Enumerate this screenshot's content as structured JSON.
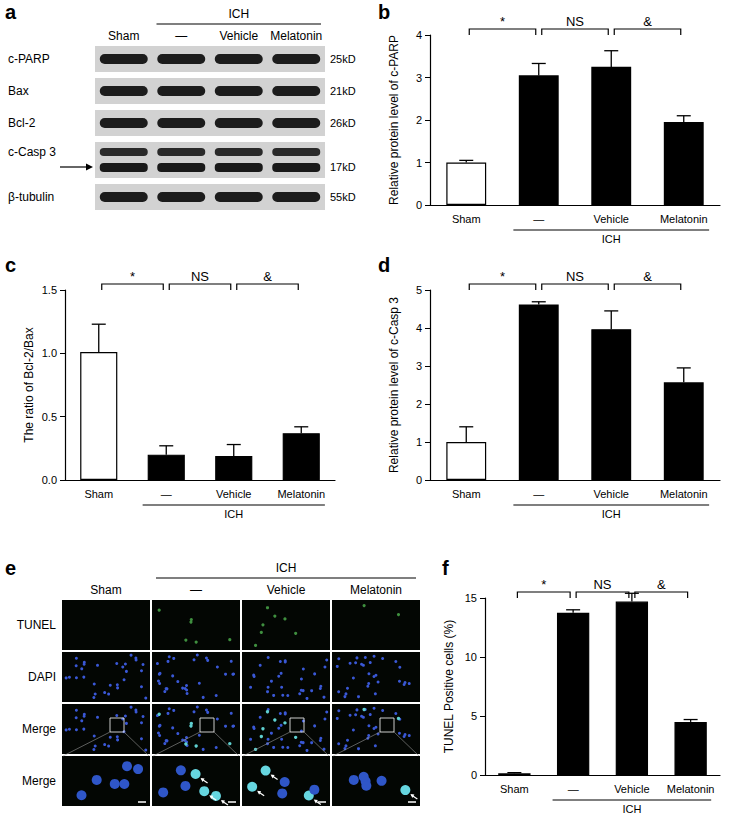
{
  "chart_data": [
    {
      "panel": "b",
      "type": "bar",
      "y_label": "Relative protein level of c-PARP",
      "categories": [
        "Sham",
        "—",
        "Vehicle",
        "Melatonin"
      ],
      "group": {
        "label": "ICH",
        "span": [
          1,
          3
        ]
      },
      "values": [
        1.0,
        3.05,
        3.25,
        1.95
      ],
      "errors": [
        0.05,
        0.28,
        0.38,
        0.15
      ],
      "colors": [
        "#ffffff",
        "#000000",
        "#000000",
        "#000000"
      ],
      "ylim": [
        0,
        4
      ],
      "yticks": [
        0,
        1,
        2,
        3,
        4
      ],
      "grid": false,
      "comparisons": [
        {
          "between": [
            0,
            1
          ],
          "label": "*"
        },
        {
          "between": [
            1,
            2
          ],
          "label": "NS"
        },
        {
          "between": [
            2,
            3
          ],
          "label": "&"
        }
      ]
    },
    {
      "panel": "c",
      "type": "bar",
      "y_label": "The ratio of Bcl-2/Bax",
      "categories": [
        "Sham",
        "—",
        "Vehicle",
        "Melatonin"
      ],
      "group": {
        "label": "ICH",
        "span": [
          1,
          3
        ]
      },
      "values": [
        1.01,
        0.2,
        0.19,
        0.37
      ],
      "errors": [
        0.22,
        0.07,
        0.09,
        0.05
      ],
      "colors": [
        "#ffffff",
        "#000000",
        "#000000",
        "#000000"
      ],
      "ylim": [
        0,
        1.5
      ],
      "yticks": [
        {
          "value": 0,
          "label": "0.0"
        },
        {
          "value": 0.5,
          "label": "0.5"
        },
        {
          "value": 1,
          "label": "1.0"
        },
        {
          "value": 1.5,
          "label": "1.5"
        }
      ],
      "grid": false,
      "comparisons": [
        {
          "between": [
            0,
            1
          ],
          "label": "*"
        },
        {
          "between": [
            1,
            2
          ],
          "label": "NS"
        },
        {
          "between": [
            2,
            3
          ],
          "label": "&"
        }
      ]
    },
    {
      "panel": "d",
      "type": "bar",
      "y_label": "Relative protein level of c-Casp 3",
      "categories": [
        "Sham",
        "—",
        "Vehicle",
        "Melatonin"
      ],
      "group": {
        "label": "ICH",
        "span": [
          1,
          3
        ]
      },
      "values": [
        1.0,
        4.62,
        3.97,
        2.57
      ],
      "errors": [
        0.4,
        0.07,
        0.48,
        0.38
      ],
      "colors": [
        "#ffffff",
        "#000000",
        "#000000",
        "#000000"
      ],
      "ylim": [
        0,
        5
      ],
      "yticks": [
        0,
        1,
        2,
        3,
        4,
        5
      ],
      "grid": false,
      "comparisons": [
        {
          "between": [
            0,
            1
          ],
          "label": "*"
        },
        {
          "between": [
            1,
            2
          ],
          "label": "NS"
        },
        {
          "between": [
            2,
            3
          ],
          "label": "&"
        }
      ]
    },
    {
      "panel": "f",
      "type": "bar",
      "y_label": "TUNEL Positive cells (%)",
      "categories": [
        "Sham",
        "—",
        "Vehicle",
        "Melatonin"
      ],
      "group": {
        "label": "ICH",
        "span": [
          1,
          3
        ]
      },
      "values": [
        0.15,
        13.75,
        14.7,
        4.5
      ],
      "errors": [
        0.05,
        0.25,
        0.7,
        0.2
      ],
      "colors": [
        "#ffffff",
        "#000000",
        "#000000",
        "#000000"
      ],
      "ylim": [
        0,
        15
      ],
      "yticks": [
        0,
        5,
        10,
        15
      ],
      "grid": false,
      "comparisons": [
        {
          "between": [
            0,
            1
          ],
          "label": "*"
        },
        {
          "between": [
            1,
            2
          ],
          "label": "NS"
        },
        {
          "between": [
            2,
            3
          ],
          "label": "&"
        }
      ]
    }
  ],
  "blot": {
    "panel": "a",
    "control": "Sham",
    "group": {
      "label": "ICH",
      "subgroups": [
        "—",
        "Vehicle",
        "Melatonin"
      ]
    },
    "rows": [
      {
        "label": "c-PARP",
        "size": "25kD"
      },
      {
        "label": "Bax",
        "size": "21kD"
      },
      {
        "label": "Bcl-2",
        "size": "26kD"
      },
      {
        "label": "c-Casp 3",
        "size": "17kD"
      },
      {
        "label": "β-tubulin",
        "size": "55kD"
      }
    ]
  },
  "tunel_images": {
    "panel": "e",
    "control": "Sham",
    "group": {
      "label": "ICH",
      "subgroups": [
        "—",
        "Vehicle",
        "Melatonin"
      ]
    },
    "rows": [
      "TUNEL",
      "DAPI",
      "Merge",
      "Merge"
    ]
  }
}
